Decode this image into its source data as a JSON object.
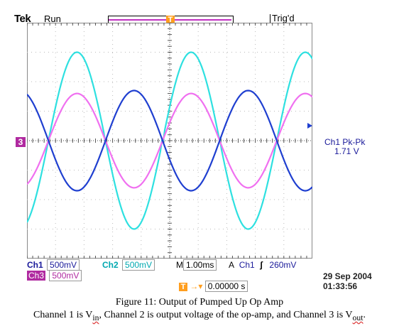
{
  "header": {
    "brand": "Tek",
    "run_state": "Run",
    "trigger_state": "Trig'd"
  },
  "markers": {
    "trigger_marker": "T",
    "ch3_ground_marker": "3"
  },
  "measurement": {
    "label": "Ch1 Pk-Pk",
    "value": "1.71 V"
  },
  "status": {
    "ch1_label": "Ch1",
    "ch1_scale": "500mV",
    "ch2_label": "Ch2",
    "ch2_scale": "500mV",
    "timebase_label": "M",
    "timebase": "1.00ms",
    "trigger_mode": "A",
    "trigger_source": "Ch1",
    "trigger_slope": "ʃ",
    "trigger_level": "260mV",
    "ch3_label": "Ch3",
    "ch3_scale": "500mV",
    "horizontal_position": "0.00000 s"
  },
  "timestamp": {
    "date": "29 Sep  2004",
    "time": "01:33:56"
  },
  "caption": {
    "line1": "Figure 11: Output of Pumped Up Op Amp",
    "line2_a": "Channel 1 is V",
    "line2_sub1": "in",
    "line2_b": ", Channel 2 is output voltage of the op-amp, and Channel 3 is V",
    "line2_sub2": "out",
    "line2_c": "."
  },
  "colors": {
    "ch1": "#1f3fd0",
    "ch2": "#2ee0e0",
    "ch3": "#f070f0",
    "trigger": "#ff9e1f",
    "ch3_tag": "#b02aa0"
  },
  "chart_data": {
    "type": "line",
    "x_divisions": 10,
    "y_divisions": 8,
    "grid": true,
    "time_per_div_ms": 1.0,
    "series": [
      {
        "name": "Ch1",
        "period_div": 4.0,
        "amplitude_div": 1.7,
        "phase_deg": 90,
        "clip_div": null
      },
      {
        "name": "Ch2",
        "period_div": 4.0,
        "amplitude_div": 3.0,
        "phase_deg": -90,
        "clip_div": null
      },
      {
        "name": "Ch3",
        "period_div": 4.0,
        "amplitude_div": 1.6,
        "phase_deg": -90,
        "clip_div": null
      }
    ]
  }
}
